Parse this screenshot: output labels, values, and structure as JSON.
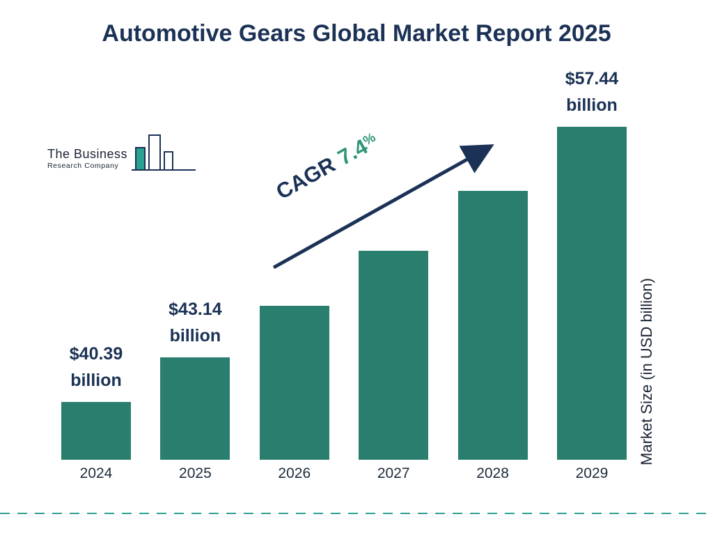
{
  "title": "Automotive Gears Global Market Report 2025",
  "logo": {
    "line1": "The Business",
    "line2": "Research Company"
  },
  "cagr": {
    "prefix": "CAGR",
    "value": "7.4",
    "percent": "%"
  },
  "ylabel": "Market Size (in USD billion)",
  "colors": {
    "bar": "#2a7e6d",
    "navy": "#1b3256",
    "cagr_green": "#2e9678",
    "dash_teal": "#2aa193"
  },
  "chart_data": {
    "type": "bar",
    "title": "Automotive Gears Global Market Report 2025",
    "categories": [
      "2024",
      "2025",
      "2026",
      "2027",
      "2028",
      "2029"
    ],
    "values": [
      40.39,
      43.14,
      46.33,
      49.76,
      53.44,
      57.44
    ],
    "bar_labels": [
      "$40.39",
      "$43.14",
      "",
      "",
      "",
      "$57.44"
    ],
    "bar_label_unit": "billion",
    "bar_color": "#2a7e6d",
    "xlabel": "",
    "ylabel": "Market Size (in USD billion)",
    "ylim": [
      36.8,
      58
    ],
    "grid": false,
    "legend": false,
    "annotation": "CAGR 7.4%"
  }
}
